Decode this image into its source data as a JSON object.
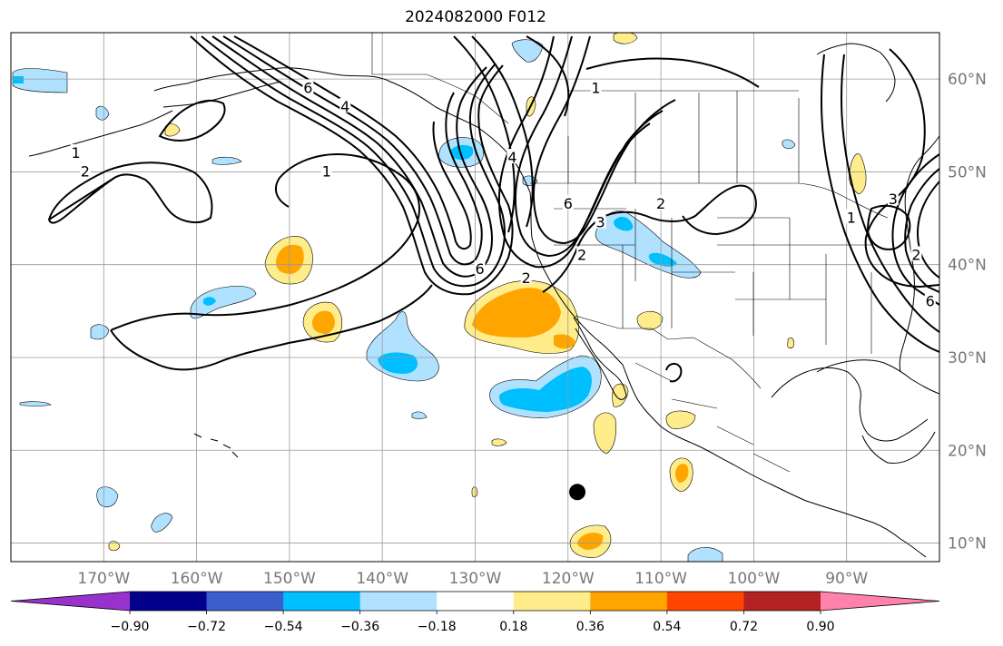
{
  "title": "2024082000 F012",
  "map": {
    "projection": "PlateCarree",
    "lon_range": [
      -180,
      -80
    ],
    "lat_range": [
      8,
      65
    ],
    "gridlines": true,
    "lon_ticks": [
      {
        "lon": -170,
        "label": "170°W"
      },
      {
        "lon": -160,
        "label": "160°W"
      },
      {
        "lon": -150,
        "label": "150°W"
      },
      {
        "lon": -140,
        "label": "140°W"
      },
      {
        "lon": -130,
        "label": "130°W"
      },
      {
        "lon": -120,
        "label": "120°W"
      },
      {
        "lon": -110,
        "label": "110°W"
      },
      {
        "lon": -100,
        "label": "100°W"
      },
      {
        "lon": -90,
        "label": "90°W"
      }
    ],
    "lat_ticks": [
      {
        "lat": 10,
        "label": "10°N"
      },
      {
        "lat": 20,
        "label": "20°N"
      },
      {
        "lat": 30,
        "label": "30°N"
      },
      {
        "lat": 40,
        "label": "40°N"
      },
      {
        "lat": 50,
        "label": "50°N"
      },
      {
        "lat": 60,
        "label": "60°N"
      }
    ],
    "marker": {
      "lon": -119,
      "lat": 15.5,
      "color": "#000000"
    },
    "contour_labels": [
      {
        "text": "1",
        "lon": -173,
        "lat": 52
      },
      {
        "text": "2",
        "lon": -172,
        "lat": 50
      },
      {
        "text": "1",
        "lon": -146,
        "lat": 50
      },
      {
        "text": "4",
        "lon": -144,
        "lat": 57
      },
      {
        "text": "6",
        "lon": -148,
        "lat": 59
      },
      {
        "text": "1",
        "lon": -117,
        "lat": 59
      },
      {
        "text": "4",
        "lon": -126,
        "lat": 51.5
      },
      {
        "text": "6",
        "lon": -120,
        "lat": 46.5
      },
      {
        "text": "2",
        "lon": -110,
        "lat": 46.5
      },
      {
        "text": "2",
        "lon": -124.5,
        "lat": 38.5
      },
      {
        "text": "6",
        "lon": -129.5,
        "lat": 39.5
      },
      {
        "text": "2",
        "lon": -118.5,
        "lat": 41
      },
      {
        "text": "3",
        "lon": -116.5,
        "lat": 44.5
      },
      {
        "text": "1",
        "lon": -89.5,
        "lat": 45
      },
      {
        "text": "3",
        "lon": -85,
        "lat": 47
      },
      {
        "text": "2",
        "lon": -82.5,
        "lat": 41
      },
      {
        "text": "6",
        "lon": -81,
        "lat": 36
      }
    ]
  },
  "colorbar": {
    "boundaries": [
      -1.08,
      -0.9,
      -0.72,
      -0.54,
      -0.36,
      -0.18,
      0.18,
      0.36,
      0.54,
      0.72,
      0.9,
      1.08
    ],
    "colors": [
      "#9932CC",
      "#00008B",
      "#3A5FCD",
      "#00BFFF",
      "#B0E2FF",
      "#FFFFFF",
      "#FFEC8B",
      "#FFA500",
      "#FF4500",
      "#B22222",
      "#FF82AB"
    ],
    "extend_colors": {
      "min": "#9932CC",
      "max": "#FF82AB"
    },
    "tick_labels": [
      "−0.90",
      "−0.72",
      "−0.54",
      "−0.36",
      "−0.18",
      "0.18",
      "0.36",
      "0.54",
      "0.72",
      "0.90"
    ]
  }
}
